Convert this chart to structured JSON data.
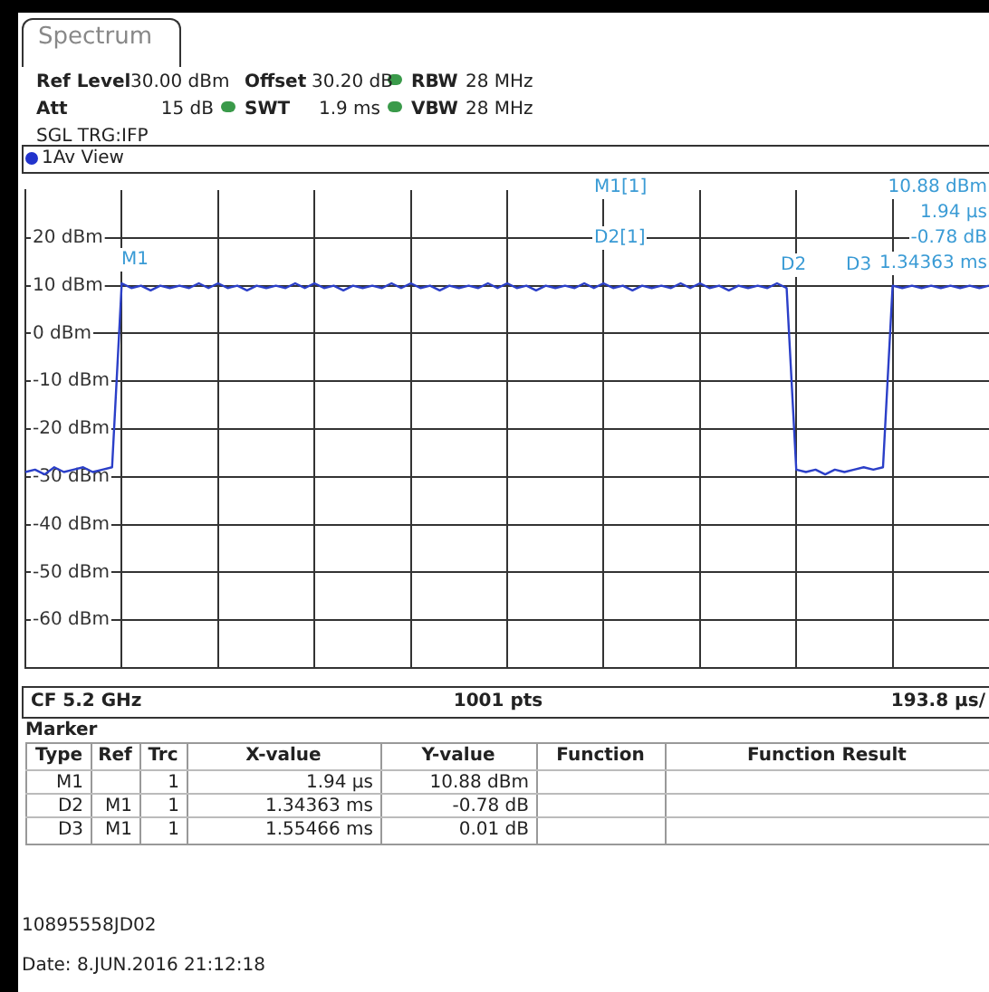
{
  "chart_data": {
    "type": "line",
    "color": "#2b3fc8",
    "ylim": [
      -70,
      30
    ],
    "yticks": [
      {
        "value": -60,
        "label": "-60 dBm"
      },
      {
        "value": -50,
        "label": "-50 dBm"
      },
      {
        "value": -40,
        "label": "-40 dBm"
      },
      {
        "value": -30,
        "label": "-30 dBm"
      },
      {
        "value": -20,
        "label": "-20 dBm"
      },
      {
        "value": -10,
        "label": "-10 dBm"
      },
      {
        "value": 0,
        "label": "0 dBm"
      },
      {
        "value": 10,
        "label": "10 dBm"
      },
      {
        "value": 20,
        "label": "20 dBm"
      }
    ],
    "grid": true,
    "legend": false,
    "tick_labels": "y",
    "marker": "none",
    "line_style": "solid",
    "categories": [
      null,
      null,
      null,
      null,
      null,
      null,
      null,
      null,
      null,
      null,
      null,
      null,
      null,
      null,
      null,
      null,
      null,
      null,
      null,
      null,
      null,
      null,
      null,
      null,
      null,
      null,
      null,
      null,
      null,
      null,
      null,
      null,
      null,
      null,
      null,
      null,
      null,
      null,
      null,
      null,
      null,
      null,
      null,
      null,
      null,
      null,
      null,
      null,
      null,
      null,
      null,
      null,
      null,
      null,
      null,
      null,
      null,
      null,
      null,
      null,
      null,
      null,
      null,
      null,
      null,
      null,
      null,
      null,
      null,
      null,
      null,
      null,
      null,
      null,
      null,
      null,
      null,
      null,
      null,
      null,
      null,
      null,
      null,
      null,
      null,
      null,
      null,
      null,
      null,
      null,
      null,
      null,
      null,
      null,
      null,
      null,
      null,
      null,
      null,
      null,
      null
    ],
    "values": [
      -29,
      -28.5,
      -29.5,
      -28,
      -29,
      -28.5,
      -28,
      -29,
      -28.5,
      -28,
      10.5,
      9.5,
      10,
      9,
      10,
      9.5,
      10,
      9.5,
      10.5,
      9.5,
      10.5,
      9.5,
      10,
      9,
      10,
      9.5,
      10,
      9.5,
      10.5,
      9.5,
      10.5,
      9.5,
      10,
      9,
      10,
      9.5,
      10,
      9.5,
      10.5,
      9.5,
      10.5,
      9.5,
      10,
      9,
      10,
      9.5,
      10,
      9.5,
      10.5,
      9.5,
      10.5,
      9.5,
      10,
      9,
      10,
      9.5,
      10,
      9.5,
      10.5,
      9.5,
      10.5,
      9.5,
      10,
      9,
      10,
      9.5,
      10,
      9.5,
      10.5,
      9.5,
      10.5,
      9.5,
      10,
      9,
      10,
      9.5,
      10,
      9.5,
      10.5,
      9.5,
      -28.5,
      -29,
      -28.5,
      -29.5,
      -28.5,
      -29,
      -28.5,
      -28,
      -28.5,
      -28,
      10,
      9.5,
      10,
      9.5,
      10,
      9.5,
      10,
      9.5,
      10,
      9.5,
      10
    ],
    "annotations": [
      "Spectrum",
      "Ref Level",
      "30.00 dBm",
      "Offset",
      "30.20 dB",
      "RBW",
      "28 MHz",
      "Att",
      "15 dB",
      "SWT",
      "1.9 ms",
      "VBW",
      "28 MHz",
      "SGL TRG:IFP",
      "1Av View",
      "M1",
      "M1[1]",
      "10.88 dBm",
      "1.94 µs",
      "D2[1]",
      "-0.78 dB",
      "1.34363 ms",
      "D2",
      "D3",
      "CF 5.2 GHz",
      "1001 pts",
      "193.8 µs/",
      "Marker",
      "Type",
      "Ref",
      "Trc",
      "X-value",
      "Y-value",
      "Function",
      "Function Result",
      "M1",
      "1",
      "1.94 µs",
      "10.88 dBm",
      "D2",
      "M1",
      "1",
      "1.34363 ms",
      "-0.78 dB",
      "D3",
      "M1",
      "1",
      "1.55466 ms",
      "0.01 dB",
      "10895558JD02",
      "Date: 8.JUN.2016  21:12:18"
    ]
  }
}
